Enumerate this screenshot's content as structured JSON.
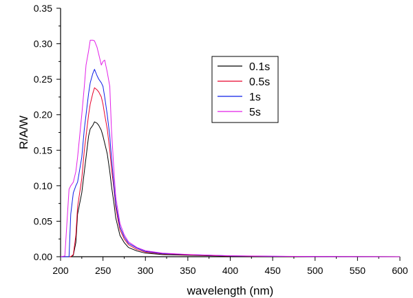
{
  "chart_data": {
    "type": "line",
    "title": "",
    "xlabel": "wavelength (nm)",
    "ylabel": "R/A/W",
    "xlim": [
      200,
      600
    ],
    "ylim": [
      0,
      0.35
    ],
    "xticks": [
      "200",
      "250",
      "300",
      "350",
      "400",
      "450",
      "500",
      "550",
      "600"
    ],
    "yticks": [
      "0.00",
      "0.05",
      "0.10",
      "0.15",
      "0.20",
      "0.25",
      "0.30",
      "0.35"
    ],
    "grid": false,
    "legend_position": "top-right",
    "x": [
      200,
      205,
      210,
      212,
      215,
      218,
      220,
      225,
      228,
      230,
      233,
      235,
      238,
      240,
      243,
      245,
      248,
      250,
      252,
      255,
      258,
      260,
      263,
      265,
      268,
      270,
      275,
      280,
      290,
      300,
      320,
      350,
      400,
      450,
      500,
      550,
      600
    ],
    "series": [
      {
        "name": "0.1s",
        "color": "#000000",
        "values": [
          0.0,
          0.0,
          0.0,
          0.0,
          0.002,
          0.02,
          0.06,
          0.09,
          0.12,
          0.14,
          0.17,
          0.18,
          0.185,
          0.19,
          0.188,
          0.185,
          0.178,
          0.17,
          0.16,
          0.145,
          0.12,
          0.1,
          0.075,
          0.055,
          0.04,
          0.03,
          0.02,
          0.013,
          0.008,
          0.005,
          0.003,
          0.002,
          0.0008,
          0.0004,
          0.0002,
          0.0001,
          0.0
        ]
      },
      {
        "name": "0.5s",
        "color": "#e8002a",
        "values": [
          0.0,
          0.0,
          0.0,
          0.0,
          0.003,
          0.03,
          0.07,
          0.11,
          0.15,
          0.17,
          0.2,
          0.215,
          0.23,
          0.238,
          0.235,
          0.232,
          0.225,
          0.215,
          0.2,
          0.18,
          0.15,
          0.125,
          0.095,
          0.07,
          0.05,
          0.038,
          0.025,
          0.017,
          0.01,
          0.0065,
          0.004,
          0.0025,
          0.001,
          0.0005,
          0.0003,
          0.0001,
          0.0
        ]
      },
      {
        "name": "1s",
        "color": "#0b1de8",
        "values": [
          0.0,
          0.0,
          0.0,
          0.06,
          0.09,
          0.1,
          0.105,
          0.14,
          0.18,
          0.2,
          0.23,
          0.245,
          0.258,
          0.264,
          0.255,
          0.25,
          0.245,
          0.24,
          0.225,
          0.2,
          0.17,
          0.14,
          0.1,
          0.075,
          0.055,
          0.042,
          0.028,
          0.019,
          0.012,
          0.0075,
          0.0045,
          0.003,
          0.0012,
          0.0006,
          0.0003,
          0.0001,
          0.0
        ]
      },
      {
        "name": "5s",
        "color": "#e21ee8",
        "values": [
          0.0,
          0.001,
          0.095,
          0.1,
          0.105,
          0.12,
          0.14,
          0.2,
          0.24,
          0.27,
          0.29,
          0.305,
          0.305,
          0.304,
          0.295,
          0.285,
          0.27,
          0.275,
          0.277,
          0.26,
          0.24,
          0.18,
          0.12,
          0.085,
          0.062,
          0.047,
          0.031,
          0.021,
          0.013,
          0.0085,
          0.005,
          0.0032,
          0.0014,
          0.0007,
          0.0003,
          0.0001,
          0.0
        ]
      }
    ]
  }
}
